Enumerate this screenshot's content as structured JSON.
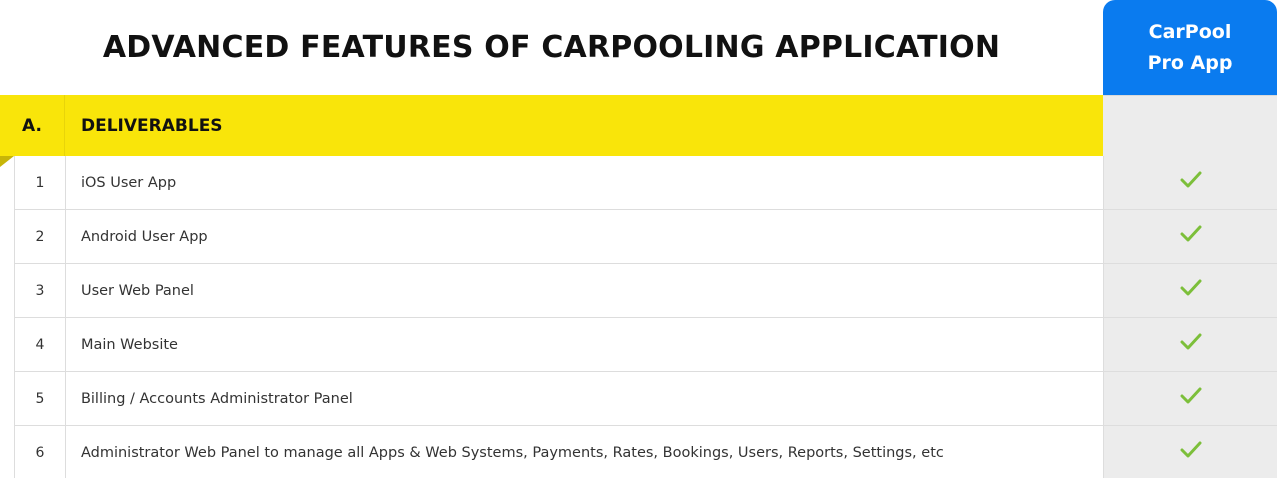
{
  "header": {
    "title": "ADVANCED FEATURES OF CARPOOLING APPLICATION",
    "product_line1": "CarPool",
    "product_line2": "Pro App",
    "product_color": "#0a7bef"
  },
  "section": {
    "letter": "A.",
    "name": "DELIVERABLES",
    "color": "#f9e50a"
  },
  "rows": [
    {
      "num": "1",
      "label": "iOS User App",
      "included": true
    },
    {
      "num": "2",
      "label": "Android User App",
      "included": true
    },
    {
      "num": "3",
      "label": "User Web Panel",
      "included": true
    },
    {
      "num": "4",
      "label": "Main Website",
      "included": true
    },
    {
      "num": "5",
      "label": "Billing / Accounts Administrator Panel",
      "included": true
    },
    {
      "num": "6",
      "label": "Administrator Web Panel to manage all Apps & Web Systems, Payments, Rates, Bookings, Users, Reports, Settings, etc",
      "included": true
    }
  ],
  "icons": {
    "check": "check-icon",
    "check_color": "#7cbf3a"
  }
}
